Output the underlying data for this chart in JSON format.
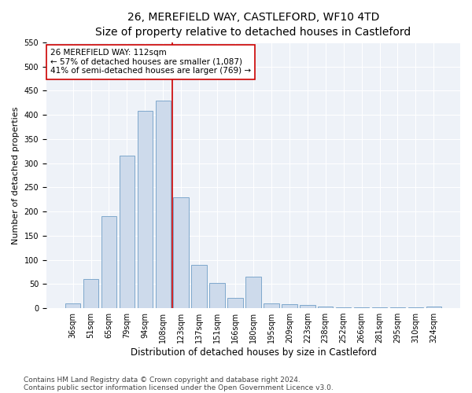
{
  "title": "26, MEREFIELD WAY, CASTLEFORD, WF10 4TD",
  "subtitle": "Size of property relative to detached houses in Castleford",
  "xlabel": "Distribution of detached houses by size in Castleford",
  "ylabel": "Number of detached properties",
  "categories": [
    "36sqm",
    "51sqm",
    "65sqm",
    "79sqm",
    "94sqm",
    "108sqm",
    "123sqm",
    "137sqm",
    "151sqm",
    "166sqm",
    "180sqm",
    "195sqm",
    "209sqm",
    "223sqm",
    "238sqm",
    "252sqm",
    "266sqm",
    "281sqm",
    "295sqm",
    "310sqm",
    "324sqm"
  ],
  "values": [
    10,
    60,
    190,
    315,
    408,
    430,
    230,
    90,
    52,
    22,
    65,
    10,
    8,
    6,
    4,
    2,
    1,
    1,
    1,
    1,
    3
  ],
  "bar_color": "#cddaeb",
  "bar_edge_color": "#7fa8cc",
  "vline_x_index": 5,
  "vline_color": "#cc0000",
  "annotation_text": "26 MEREFIELD WAY: 112sqm\n← 57% of detached houses are smaller (1,087)\n41% of semi-detached houses are larger (769) →",
  "annotation_box_facecolor": "#ffffff",
  "annotation_box_edgecolor": "#cc0000",
  "ylim": [
    0,
    550
  ],
  "yticks": [
    0,
    50,
    100,
    150,
    200,
    250,
    300,
    350,
    400,
    450,
    500,
    550
  ],
  "background_color": "#ffffff",
  "plot_background_color": "#eef2f8",
  "grid_color": "#ffffff",
  "footnote1": "Contains HM Land Registry data © Crown copyright and database right 2024.",
  "footnote2": "Contains public sector information licensed under the Open Government Licence v3.0.",
  "title_fontsize": 10,
  "ylabel_fontsize": 8,
  "xlabel_fontsize": 8.5,
  "tick_fontsize": 7,
  "annotation_fontsize": 7.5,
  "footnote_fontsize": 6.5
}
